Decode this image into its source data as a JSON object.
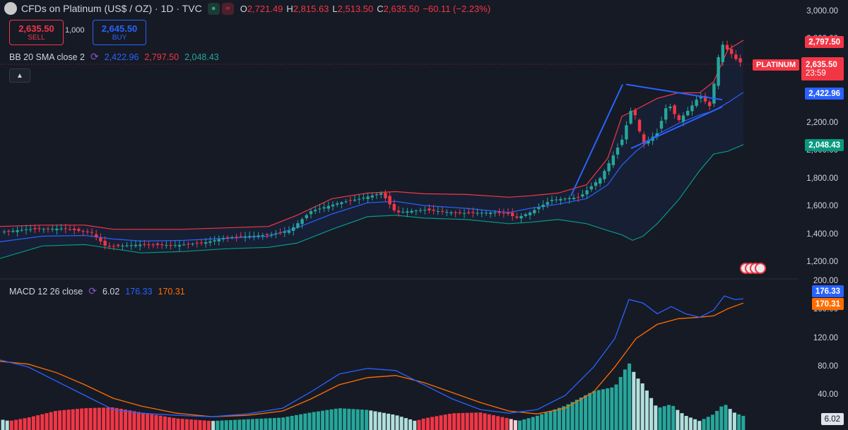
{
  "header": {
    "title": "CFDs on Platinum (US$ / OZ) · 1D · TVC",
    "market_icon": "dot-icon",
    "exchange_icon": "wave-icon",
    "ohlc": [
      {
        "k": "O",
        "v": "2,721.49"
      },
      {
        "k": "H",
        "v": "2,815.63"
      },
      {
        "k": "L",
        "v": "2,513.50"
      },
      {
        "k": "C",
        "v": "2,635.50"
      },
      {
        "k": "",
        "v": "−60.11 (−2.23%)"
      }
    ]
  },
  "trade": {
    "sell_price": "2,635.50",
    "sell_label": "SELL",
    "quantity": "1,000",
    "buy_price": "2,645.50",
    "buy_label": "BUY"
  },
  "indicators": {
    "bb": {
      "name": "BB 20 SMA close 2",
      "basis": "2,422.96",
      "upper": "2,797.50",
      "lower": "2,048.43"
    },
    "macd": {
      "name": "MACD 12 26 close",
      "hist": "6.02",
      "macd": "176.33",
      "signal": "170.31"
    }
  },
  "price_axis": {
    "ticks": [
      "3,000.00",
      "2,800.00",
      "2,600.00",
      "2,400.00",
      "2,200.00",
      "2,000.00",
      "1,800.00",
      "1,600.00",
      "1,400.00",
      "1,200.00"
    ],
    "labels": {
      "upper": "2,797.50",
      "current": "2,635.50",
      "countdown": "23:59",
      "basis": "2,422.96",
      "lower": "2,048.43"
    },
    "symbol_tag": "PLATINUM"
  },
  "macd_axis": {
    "ticks": [
      "200.00",
      "160.00",
      "120.00",
      "80.00",
      "40.00"
    ],
    "labels": {
      "macd": "176.33",
      "signal": "170.31",
      "hist": "6.02"
    }
  },
  "colors": {
    "background": "#161a25",
    "up": "#26a69a",
    "down": "#f23645",
    "basis": "#2962ff",
    "upper": "#f23645",
    "lower": "#089981",
    "macd": "#2962ff",
    "signal": "#ff6d00"
  },
  "chart_data": {
    "type": "candlestick",
    "price_range": [
      1100,
      3050
    ],
    "macd_range": [
      0,
      200
    ],
    "price_path": [
      [
        0,
        1420
      ],
      [
        40,
        1440
      ],
      [
        90,
        1445
      ],
      [
        130,
        1415
      ],
      [
        150,
        1315
      ],
      [
        200,
        1330
      ],
      [
        250,
        1325
      ],
      [
        290,
        1345
      ],
      [
        320,
        1380
      ],
      [
        380,
        1400
      ],
      [
        410,
        1430
      ],
      [
        440,
        1570
      ],
      [
        480,
        1630
      ],
      [
        510,
        1660
      ],
      [
        540,
        1700
      ],
      [
        560,
        1560
      ],
      [
        600,
        1580
      ],
      [
        650,
        1555
      ],
      [
        700,
        1560
      ],
      [
        720,
        1550
      ],
      [
        730,
        1520
      ],
      [
        750,
        1560
      ],
      [
        780,
        1650
      ],
      [
        820,
        1670
      ],
      [
        850,
        1810
      ],
      [
        880,
        2080
      ],
      [
        895,
        2330
      ],
      [
        910,
        2050
      ],
      [
        930,
        2130
      ],
      [
        945,
        2350
      ],
      [
        960,
        2220
      ],
      [
        975,
        2300
      ],
      [
        990,
        2400
      ],
      [
        1005,
        2320
      ],
      [
        1020,
        2780
      ],
      [
        1035,
        2700
      ],
      [
        1045,
        2640
      ],
      [
        1052,
        2635
      ]
    ],
    "bb_basis": [
      [
        0,
        1350
      ],
      [
        60,
        1390
      ],
      [
        120,
        1395
      ],
      [
        160,
        1370
      ],
      [
        200,
        1355
      ],
      [
        260,
        1360
      ],
      [
        320,
        1375
      ],
      [
        380,
        1390
      ],
      [
        420,
        1450
      ],
      [
        470,
        1550
      ],
      [
        520,
        1630
      ],
      [
        560,
        1640
      ],
      [
        600,
        1610
      ],
      [
        660,
        1590
      ],
      [
        720,
        1560
      ],
      [
        750,
        1590
      ],
      [
        790,
        1620
      ],
      [
        830,
        1660
      ],
      [
        860,
        1760
      ],
      [
        880,
        1900
      ],
      [
        900,
        2000
      ],
      [
        930,
        2120
      ],
      [
        960,
        2200
      ],
      [
        990,
        2260
      ],
      [
        1010,
        2290
      ],
      [
        1030,
        2350
      ],
      [
        1052,
        2423
      ]
    ],
    "bb_upper": [
      [
        0,
        1460
      ],
      [
        60,
        1470
      ],
      [
        120,
        1470
      ],
      [
        160,
        1440
      ],
      [
        200,
        1440
      ],
      [
        260,
        1440
      ],
      [
        320,
        1450
      ],
      [
        380,
        1460
      ],
      [
        420,
        1540
      ],
      [
        470,
        1660
      ],
      [
        520,
        1700
      ],
      [
        560,
        1710
      ],
      [
        600,
        1695
      ],
      [
        660,
        1690
      ],
      [
        720,
        1670
      ],
      [
        750,
        1680
      ],
      [
        790,
        1700
      ],
      [
        830,
        1760
      ],
      [
        860,
        1950
      ],
      [
        880,
        2250
      ],
      [
        900,
        2300
      ],
      [
        930,
        2380
      ],
      [
        960,
        2420
      ],
      [
        990,
        2420
      ],
      [
        1010,
        2500
      ],
      [
        1030,
        2730
      ],
      [
        1052,
        2797
      ]
    ],
    "bb_lower": [
      [
        0,
        1230
      ],
      [
        60,
        1320
      ],
      [
        120,
        1330
      ],
      [
        160,
        1300
      ],
      [
        200,
        1270
      ],
      [
        260,
        1280
      ],
      [
        320,
        1300
      ],
      [
        380,
        1310
      ],
      [
        420,
        1340
      ],
      [
        470,
        1440
      ],
      [
        520,
        1530
      ],
      [
        560,
        1540
      ],
      [
        600,
        1520
      ],
      [
        660,
        1510
      ],
      [
        720,
        1480
      ],
      [
        750,
        1490
      ],
      [
        790,
        1510
      ],
      [
        830,
        1480
      ],
      [
        860,
        1430
      ],
      [
        880,
        1400
      ],
      [
        895,
        1360
      ],
      [
        910,
        1390
      ],
      [
        930,
        1480
      ],
      [
        960,
        1650
      ],
      [
        990,
        1860
      ],
      [
        1010,
        1980
      ],
      [
        1030,
        2000
      ],
      [
        1052,
        2048
      ]
    ],
    "macd_line": [
      [
        0,
        90
      ],
      [
        40,
        80
      ],
      [
        80,
        60
      ],
      [
        120,
        40
      ],
      [
        160,
        20
      ],
      [
        200,
        15
      ],
      [
        250,
        12
      ],
      [
        300,
        10
      ],
      [
        350,
        14
      ],
      [
        400,
        22
      ],
      [
        440,
        45
      ],
      [
        480,
        70
      ],
      [
        520,
        78
      ],
      [
        560,
        75
      ],
      [
        600,
        55
      ],
      [
        640,
        35
      ],
      [
        680,
        20
      ],
      [
        720,
        15
      ],
      [
        760,
        20
      ],
      [
        800,
        40
      ],
      [
        840,
        80
      ],
      [
        870,
        120
      ],
      [
        890,
        175
      ],
      [
        910,
        170
      ],
      [
        930,
        155
      ],
      [
        950,
        165
      ],
      [
        970,
        155
      ],
      [
        990,
        150
      ],
      [
        1010,
        160
      ],
      [
        1025,
        180
      ],
      [
        1040,
        175
      ],
      [
        1052,
        176
      ]
    ],
    "signal_line": [
      [
        0,
        88
      ],
      [
        40,
        84
      ],
      [
        80,
        72
      ],
      [
        120,
        55
      ],
      [
        160,
        36
      ],
      [
        200,
        25
      ],
      [
        250,
        15
      ],
      [
        300,
        10
      ],
      [
        350,
        12
      ],
      [
        400,
        18
      ],
      [
        440,
        35
      ],
      [
        480,
        55
      ],
      [
        520,
        65
      ],
      [
        560,
        68
      ],
      [
        600,
        58
      ],
      [
        640,
        44
      ],
      [
        680,
        30
      ],
      [
        720,
        18
      ],
      [
        760,
        14
      ],
      [
        800,
        22
      ],
      [
        840,
        45
      ],
      [
        870,
        80
      ],
      [
        900,
        120
      ],
      [
        930,
        140
      ],
      [
        960,
        148
      ],
      [
        990,
        150
      ],
      [
        1010,
        152
      ],
      [
        1030,
        162
      ],
      [
        1052,
        170
      ]
    ]
  }
}
